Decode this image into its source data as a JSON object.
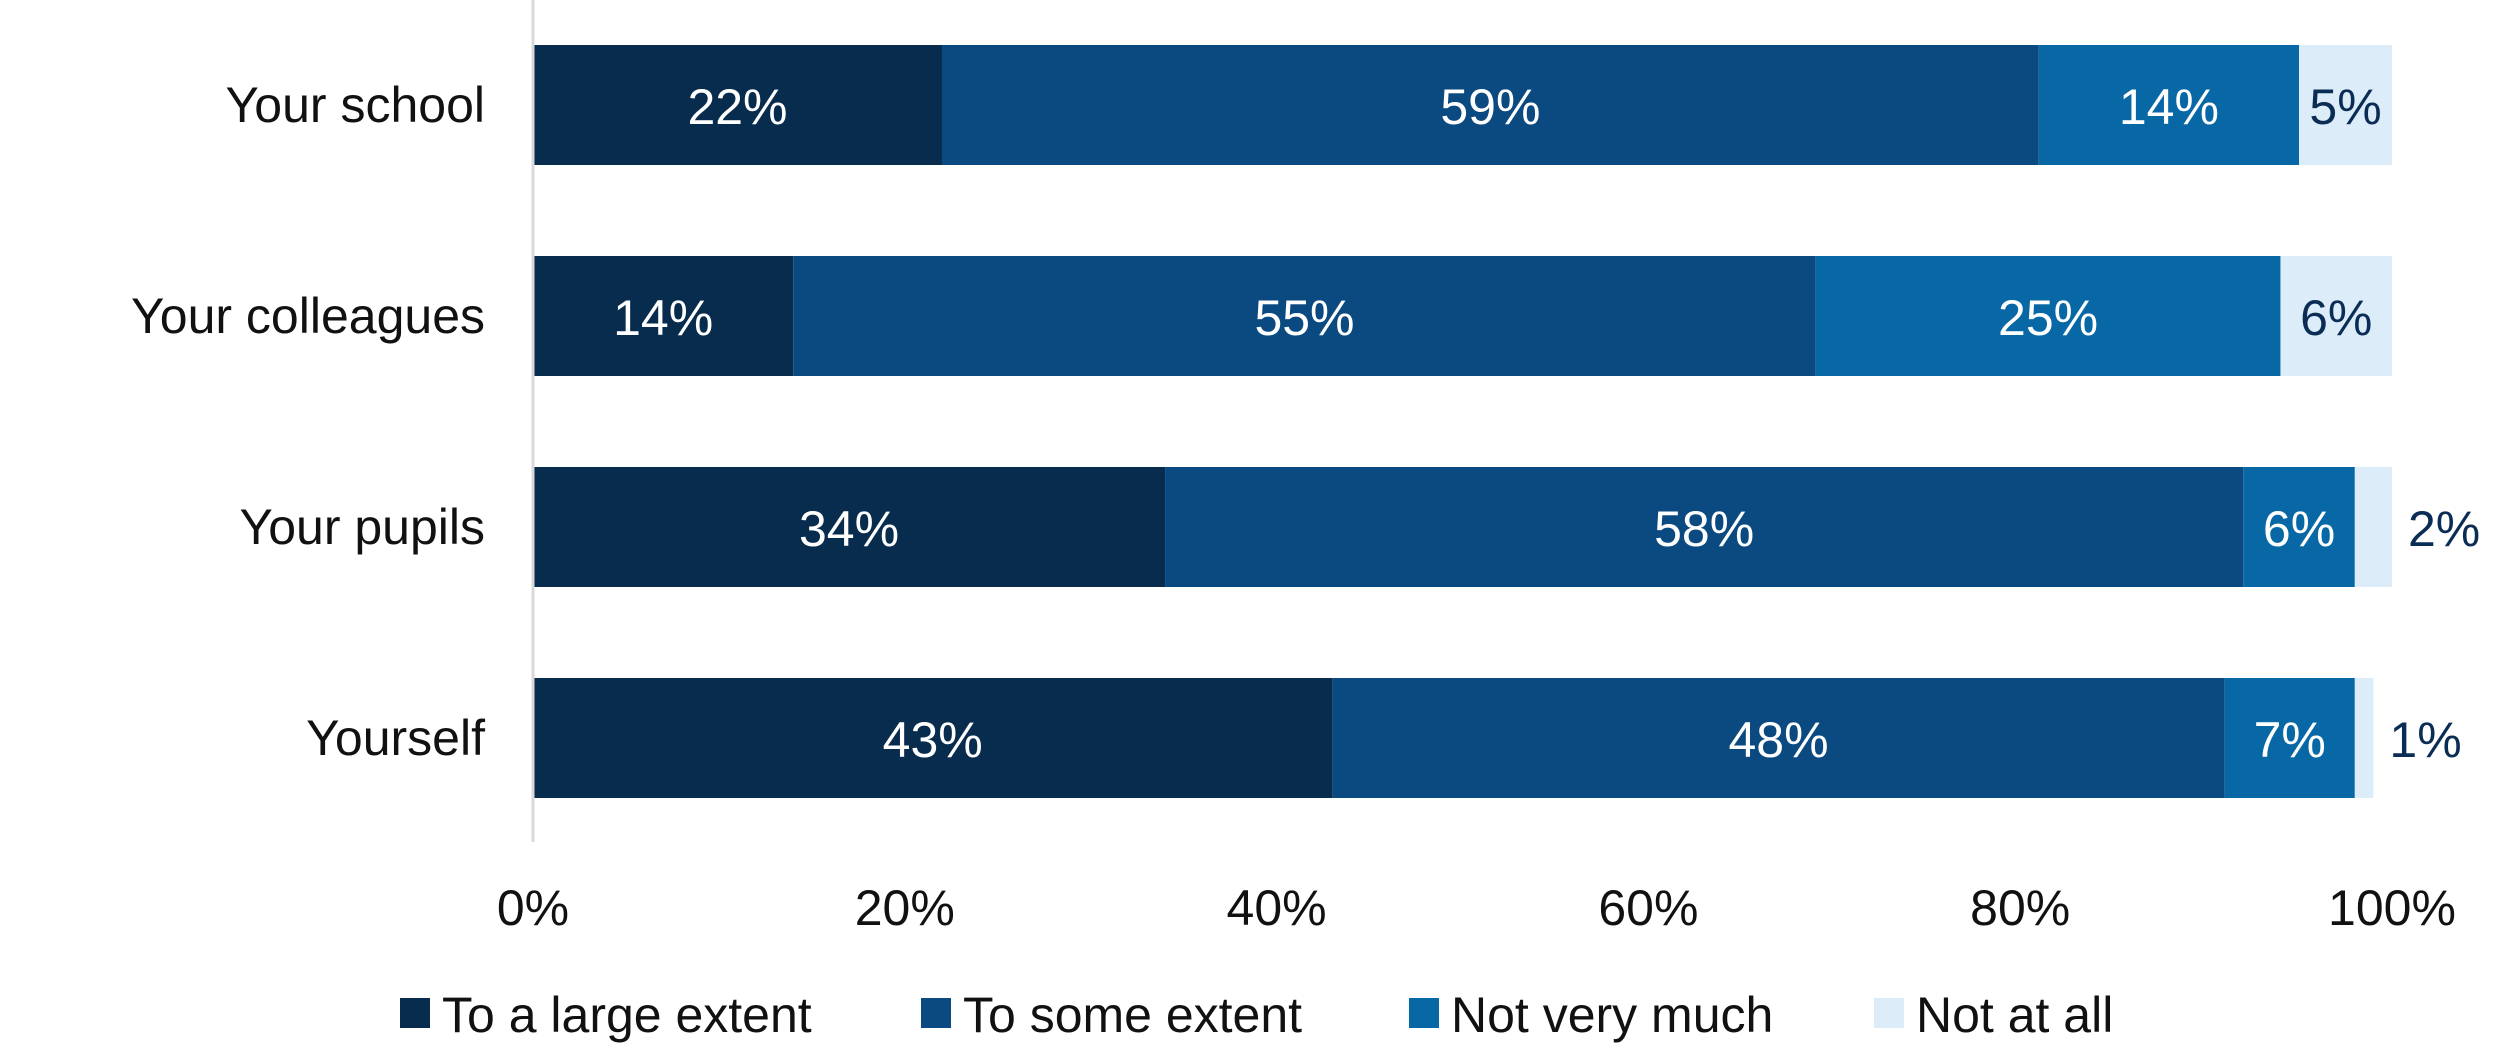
{
  "chart_data": {
    "type": "bar",
    "orientation": "horizontal",
    "stacked": true,
    "categories": [
      "Your school",
      "Your colleagues",
      "Your pupils",
      "Yourself"
    ],
    "series": [
      {
        "name": "To a large extent",
        "color": "#082c4e",
        "values": [
          22,
          14,
          34,
          43
        ],
        "labels": [
          "22%",
          "14%",
          "34%",
          "43%"
        ]
      },
      {
        "name": "To some extent",
        "color": "#0b4a80",
        "values": [
          59,
          55,
          58,
          48
        ],
        "labels": [
          "59%",
          "55%",
          "58%",
          "48%"
        ]
      },
      {
        "name": "Not very much",
        "color": "#0868a6",
        "values": [
          14,
          25,
          6,
          7
        ],
        "labels": [
          "14%",
          "25%",
          "6%",
          "7%"
        ]
      },
      {
        "name": "Not at all",
        "color": "#dcecf9",
        "values": [
          5,
          6,
          2,
          1
        ],
        "labels": [
          "5%",
          "6%",
          "2%",
          "1%"
        ]
      }
    ],
    "x_ticks": [
      "0%",
      "20%",
      "40%",
      "60%",
      "80%",
      "100%"
    ],
    "xlim": [
      0,
      100
    ],
    "grid": false,
    "legend": "bottom",
    "title": "",
    "xlabel": "",
    "ylabel": ""
  }
}
